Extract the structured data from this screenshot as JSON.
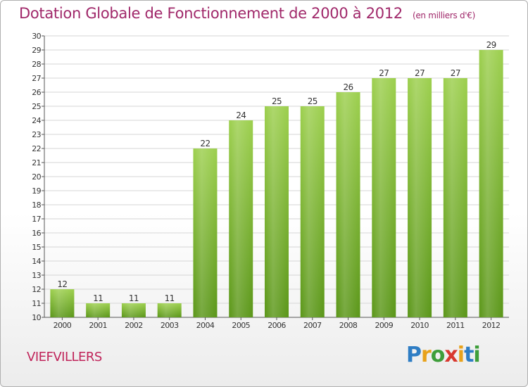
{
  "header": {
    "title": "Dotation Globale de Fonctionnement de 2000 à 2012",
    "unit": "(en milliers d'€)"
  },
  "footer": {
    "commune": "VIEFVILLERS",
    "brand": "Proxiti"
  },
  "colors": {
    "bar_light": "#9ccf4d",
    "bar_dark": "#5a9618",
    "title": "#a0286a",
    "commune": "#c0245a",
    "grid": "#d6d6d6"
  },
  "chart_data": {
    "type": "bar",
    "title": "Dotation Globale de Fonctionnement de 2000 à 2012",
    "subtitle": "(en milliers d'€)",
    "xlabel": "",
    "ylabel": "",
    "categories": [
      "2000",
      "2001",
      "2002",
      "2003",
      "2004",
      "2005",
      "2006",
      "2007",
      "2008",
      "2009",
      "2010",
      "2011",
      "2012"
    ],
    "values": [
      12,
      11,
      11,
      11,
      22,
      24,
      25,
      25,
      26,
      27,
      27,
      27,
      29
    ],
    "ylim": [
      10,
      30
    ],
    "yticks": [
      10,
      11,
      12,
      13,
      14,
      15,
      16,
      17,
      18,
      19,
      20,
      21,
      22,
      23,
      24,
      25,
      26,
      27,
      28,
      29,
      30
    ],
    "grid": true,
    "legend": "none"
  }
}
